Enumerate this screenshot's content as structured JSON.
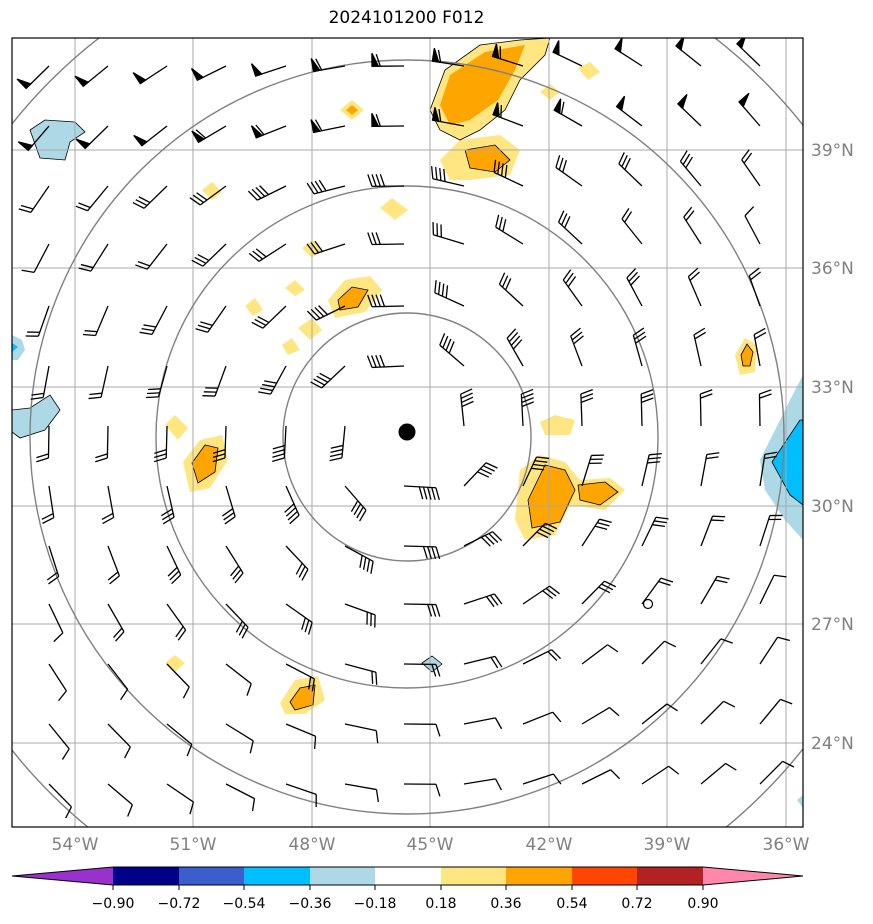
{
  "title": "2024101200 F012",
  "lat_labels": [
    "39°N",
    "36°N",
    "33°N",
    "30°N",
    "27°N",
    "24°N"
  ],
  "lon_labels": [
    "54°W",
    "51°W",
    "48°W",
    "45°W",
    "42°W",
    "39°W",
    "36°W"
  ],
  "colorbar": {
    "ticks": [
      "−0.90",
      "−0.72",
      "−0.54",
      "−0.36",
      "−0.18",
      "0.18",
      "0.36",
      "0.54",
      "0.72",
      "0.90"
    ],
    "colors": [
      "#9932cc",
      "#00008b",
      "#3a5fcd",
      "#00bfff",
      "#add8e6",
      "#ffffff",
      "#ffe680",
      "#ffa500",
      "#ff4500",
      "#b22222",
      "#ff88aa"
    ]
  },
  "colors": {
    "grid": "#a9a9a9",
    "range_rings": "#808080",
    "wind_barbs": "#000000",
    "positive_low": "#ffe680",
    "positive_mid": "#ffa500",
    "negative_low": "#add8e6",
    "negative_mid": "#00bfff"
  }
}
